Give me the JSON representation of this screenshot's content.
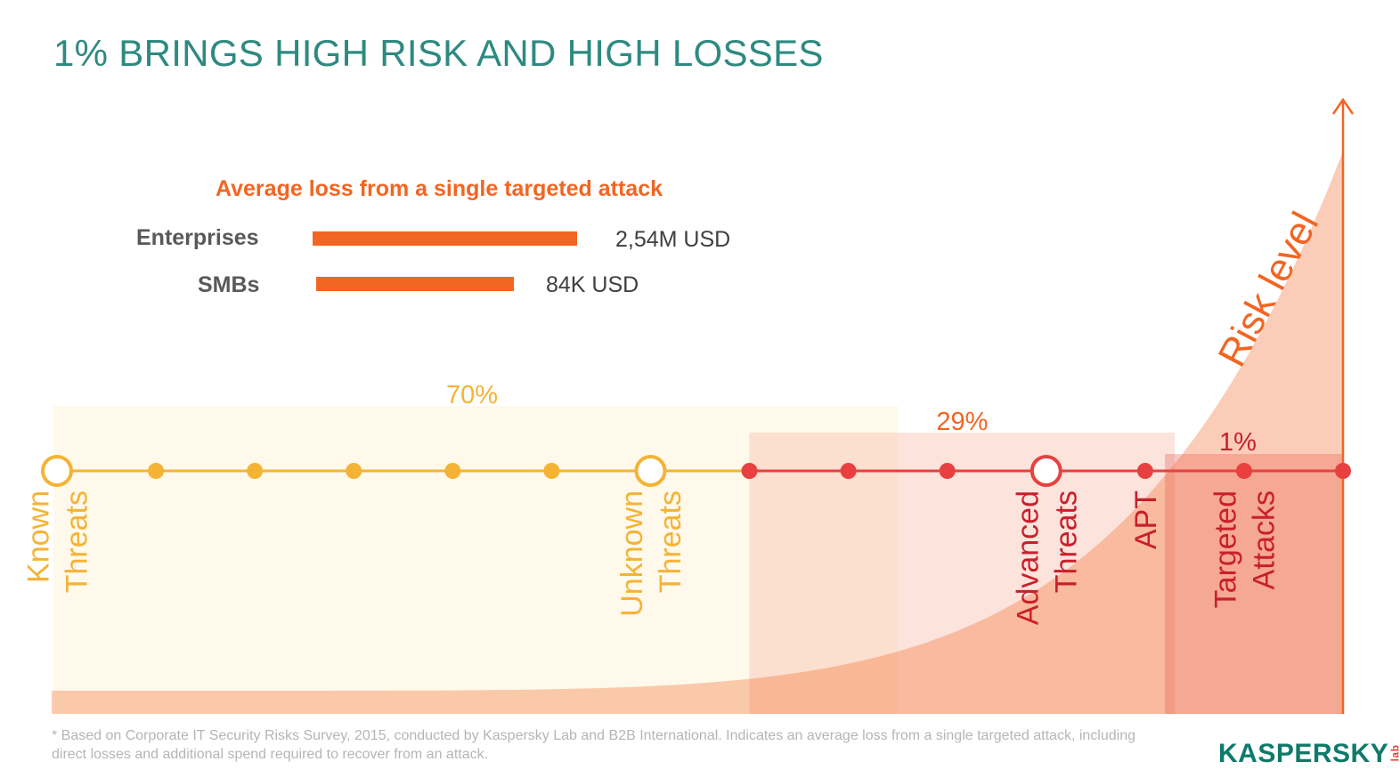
{
  "title": "1% BRINGS HIGH RISK AND HIGH LOSSES",
  "colors": {
    "title": "#2e8a80",
    "accent": "#f26522",
    "known": "#f5b335",
    "advanced": "#e84040",
    "dark_red": "#c8202a",
    "logo": "#0f7a6a",
    "logo_lab": "#e84040"
  },
  "loss_chart": {
    "title": "Average loss from a single targeted attack",
    "items": [
      {
        "label": "Enterprises",
        "value": 2.54,
        "display": "2,54M USD"
      },
      {
        "label": "SMBs",
        "value": 0.084,
        "display": "84K USD"
      }
    ]
  },
  "chart_data": {
    "type": "area",
    "axis_label": "Risk level",
    "timeline_points": [
      {
        "label": "Known Threats",
        "label_lines": [
          "Known",
          "Threats"
        ],
        "major": true,
        "zone": "known"
      },
      {
        "label": "",
        "major": false,
        "zone": "known"
      },
      {
        "label": "",
        "major": false,
        "zone": "known"
      },
      {
        "label": "",
        "major": false,
        "zone": "known"
      },
      {
        "label": "",
        "major": false,
        "zone": "known"
      },
      {
        "label": "",
        "major": false,
        "zone": "known"
      },
      {
        "label": "Unknown Threats",
        "label_lines": [
          "Unknown",
          "Threats"
        ],
        "major": true,
        "zone": "known"
      },
      {
        "label": "",
        "major": false,
        "zone": "advanced"
      },
      {
        "label": "",
        "major": false,
        "zone": "advanced"
      },
      {
        "label": "",
        "major": false,
        "zone": "advanced"
      },
      {
        "label": "Advanced Threats",
        "label_lines": [
          "Advanced",
          "Threats"
        ],
        "major": true,
        "zone": "advanced"
      },
      {
        "label": "APT",
        "label_lines": [
          "APT"
        ],
        "major": false,
        "zone": "advanced"
      },
      {
        "label": "Targeted Attacks",
        "label_lines": [
          "Targeted",
          "Attacks"
        ],
        "major": false,
        "zone": "advanced"
      },
      {
        "label": "",
        "major": false,
        "zone": "advanced"
      }
    ],
    "shares": [
      {
        "label": "70%",
        "value": 70,
        "from_point": 0,
        "to_point": 8.5
      },
      {
        "label": "29%",
        "value": 29,
        "from_point": 7,
        "to_point": 11.3
      },
      {
        "label": "1%",
        "value": 1,
        "from_point": 11.2,
        "to_point": 13
      }
    ]
  },
  "footnote": "* Based on Corporate IT Security Risks Survey, 2015, conducted by Kaspersky Lab and B2B International. Indicates an average loss from a single targeted attack, including direct losses and additional spend required to recover from an attack.",
  "logo": {
    "text": "KASPERSKY",
    "suffix": "lab"
  }
}
